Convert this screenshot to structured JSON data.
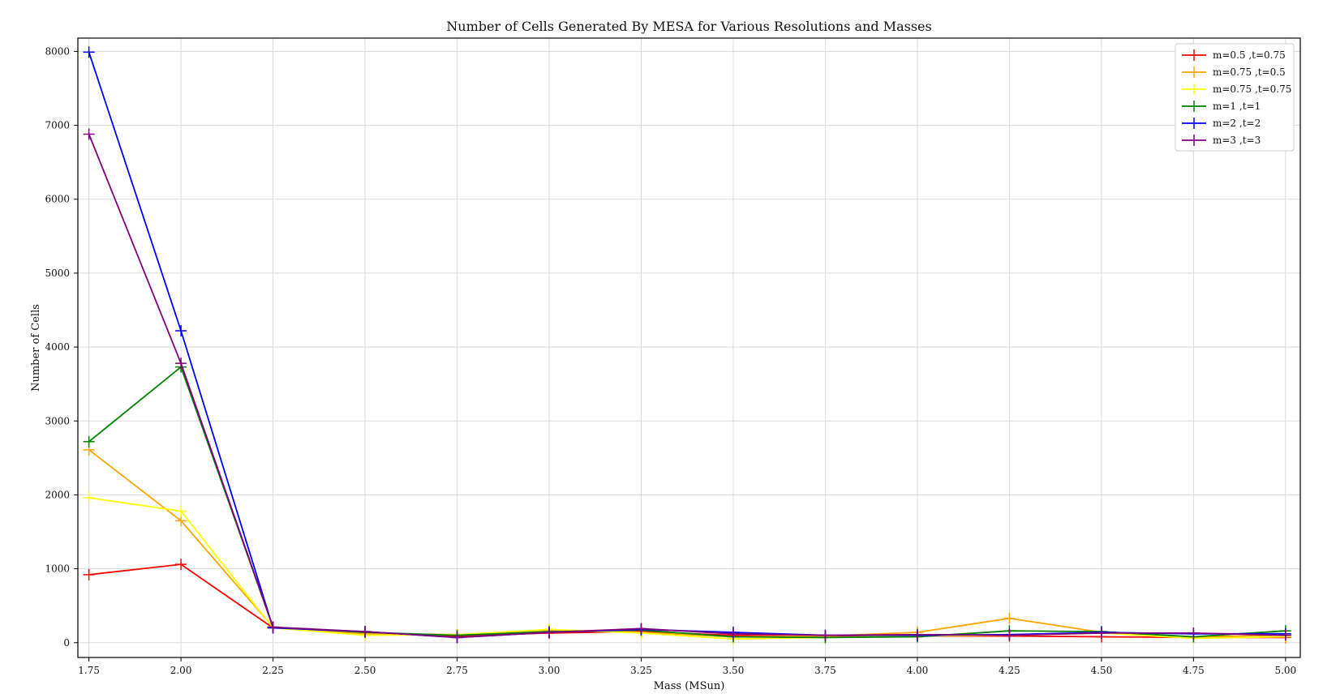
{
  "chart_data": {
    "type": "line",
    "title": "Number of Cells Generated By MESA for Various Resolutions and Masses",
    "xlabel": "Mass (MSun)",
    "ylabel": "Number of Cells",
    "xlim": [
      1.72,
      5.04
    ],
    "ylim": [
      -200,
      8180
    ],
    "grid": true,
    "legend_position": "top-right",
    "x": [
      1.75,
      2.0,
      2.25,
      2.5,
      2.75,
      3.0,
      3.25,
      3.5,
      3.75,
      4.0,
      4.25,
      4.5,
      4.75,
      5.0
    ],
    "x_ticks": [
      1.75,
      2.0,
      2.25,
      2.5,
      2.75,
      3.0,
      3.25,
      3.5,
      3.75,
      4.0,
      4.25,
      4.5,
      4.75,
      5.0
    ],
    "x_tick_labels": [
      "1.75",
      "2.00",
      "2.25",
      "2.50",
      "2.75",
      "3.00",
      "3.25",
      "3.50",
      "3.75",
      "4.00",
      "4.25",
      "4.50",
      "4.75",
      "5.00"
    ],
    "y_ticks": [
      0,
      1000,
      2000,
      3000,
      4000,
      5000,
      6000,
      7000,
      8000
    ],
    "y_tick_labels": [
      "0",
      "1000",
      "2000",
      "3000",
      "4000",
      "5000",
      "6000",
      "7000",
      "8000"
    ],
    "series": [
      {
        "name": "m=0.5 ,t=0.75",
        "color": "#ff0000",
        "values": [
          920,
          1060,
          200,
          130,
          90,
          130,
          150,
          100,
          80,
          90,
          90,
          80,
          70,
          70
        ]
      },
      {
        "name": "m=0.75 ,t=0.5",
        "color": "#ffa500",
        "values": [
          2610,
          1650,
          210,
          120,
          110,
          170,
          140,
          80,
          90,
          140,
          330,
          140,
          80,
          100
        ]
      },
      {
        "name": "m=0.75 ,t=0.75",
        "color": "#ffff00",
        "values": [
          1960,
          1780,
          200,
          100,
          110,
          180,
          130,
          50,
          70,
          90,
          100,
          130,
          60,
          80
        ]
      },
      {
        "name": "m=1 ,t=1",
        "color": "#008000",
        "values": [
          2720,
          3730,
          210,
          140,
          100,
          150,
          170,
          80,
          70,
          80,
          160,
          150,
          80,
          160
        ]
      },
      {
        "name": "m=2 ,t=2",
        "color": "#0000ff",
        "values": [
          7990,
          4220,
          200,
          150,
          70,
          140,
          180,
          140,
          100,
          100,
          110,
          140,
          120,
          120
        ]
      },
      {
        "name": "m=3 ,t=3",
        "color": "#800080",
        "values": [
          6880,
          3780,
          210,
          150,
          70,
          140,
          190,
          120,
          100,
          110,
          100,
          130,
          130,
          100
        ]
      }
    ]
  }
}
